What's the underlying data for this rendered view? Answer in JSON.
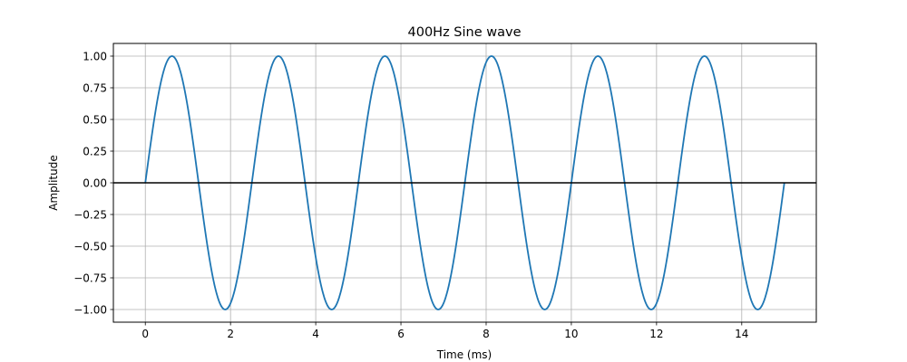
{
  "chart_data": {
    "type": "line",
    "title": "400Hz Sine wave",
    "xlabel": "Time (ms)",
    "ylabel": "Amplitude",
    "xlim": [
      -0.75,
      15.75
    ],
    "ylim": [
      -1.1,
      1.1
    ],
    "xticks": [
      0,
      2,
      4,
      6,
      8,
      10,
      12,
      14
    ],
    "xtick_labels": [
      "0",
      "2",
      "4",
      "6",
      "8",
      "10",
      "12",
      "14"
    ],
    "yticks": [
      1.0,
      0.75,
      0.5,
      0.25,
      0.0,
      -0.25,
      -0.5,
      -0.75,
      -1.0
    ],
    "ytick_labels": [
      "1.00",
      "0.75",
      "0.50",
      "0.25",
      "0.00",
      "−0.25",
      "−0.50",
      "−0.75",
      "−1.00"
    ],
    "grid": true,
    "baseline": {
      "y": 0,
      "color": "#000000"
    },
    "series": [
      {
        "frequency_hz": 400,
        "amplitude": 1.0,
        "x_range": [
          0,
          15
        ],
        "color": "#1f77b4"
      }
    ]
  }
}
